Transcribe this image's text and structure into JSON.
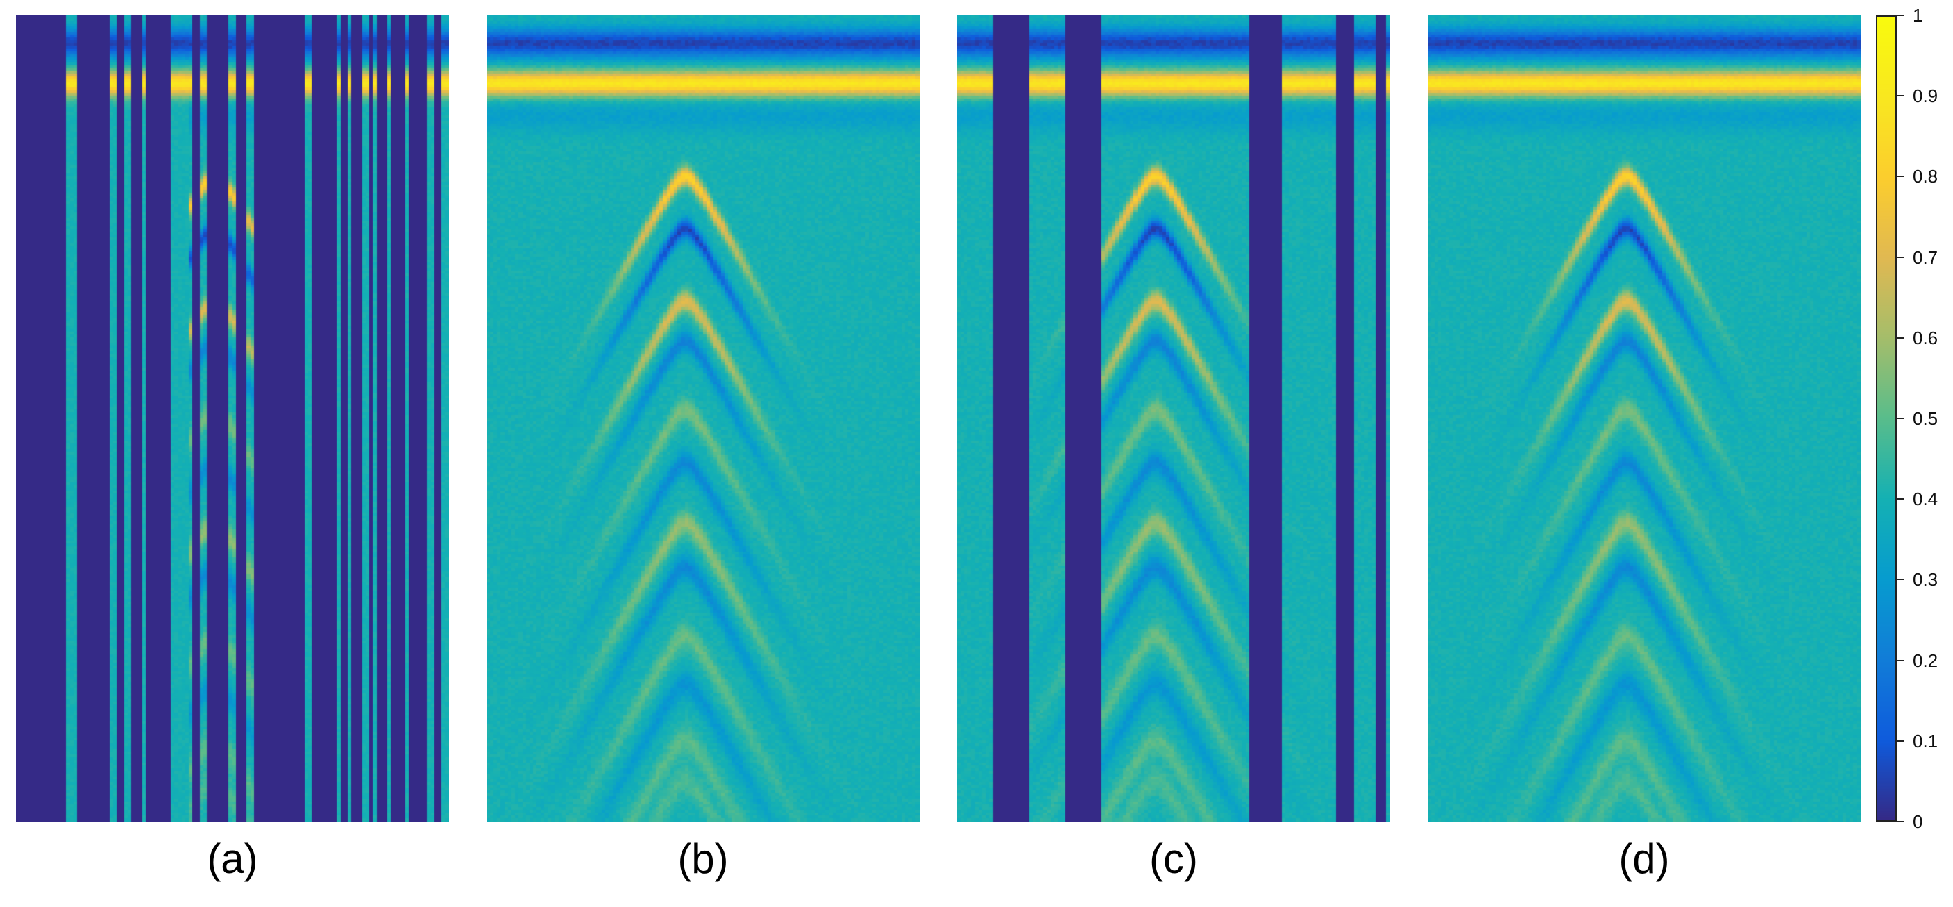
{
  "chart_data": [
    {
      "type": "heatmap",
      "panel_label": "(a)",
      "description_values": {
        "columns": 120,
        "missing_columns_value": 0,
        "missing_column_ranges": [
          [
            0,
            14
          ],
          [
            17,
            26
          ],
          [
            28,
            30
          ],
          [
            32,
            35
          ],
          [
            36,
            43
          ],
          [
            49,
            51
          ],
          [
            53,
            59
          ],
          [
            61,
            64
          ],
          [
            66,
            80
          ],
          [
            82,
            89
          ],
          [
            90,
            92
          ],
          [
            93,
            96
          ],
          [
            98,
            99
          ],
          [
            100,
            103
          ],
          [
            104,
            108
          ],
          [
            109,
            114
          ],
          [
            116,
            118
          ]
        ]
      }
    },
    {
      "type": "heatmap",
      "panel_label": "(b)",
      "description_values": {
        "columns": 120,
        "missing_columns_value": 0,
        "missing_column_ranges": []
      }
    },
    {
      "type": "heatmap",
      "panel_label": "(c)",
      "description_values": {
        "columns": 120,
        "missing_columns_value": 0,
        "missing_column_ranges": [
          [
            10,
            20
          ],
          [
            30,
            40
          ],
          [
            81,
            90
          ],
          [
            105,
            110
          ],
          [
            116,
            119
          ]
        ]
      }
    },
    {
      "type": "heatmap",
      "panel_label": "(d)",
      "description_values": {
        "columns": 120,
        "missing_columns_value": 0,
        "missing_column_ranges": []
      }
    }
  ],
  "colorbar": {
    "min": 0,
    "max": 1,
    "ticks": [
      "0",
      "0.1",
      "0.2",
      "0.3",
      "0.4",
      "0.5",
      "0.6",
      "0.7",
      "0.8",
      "0.9",
      "1"
    ],
    "colormap": "parula"
  }
}
